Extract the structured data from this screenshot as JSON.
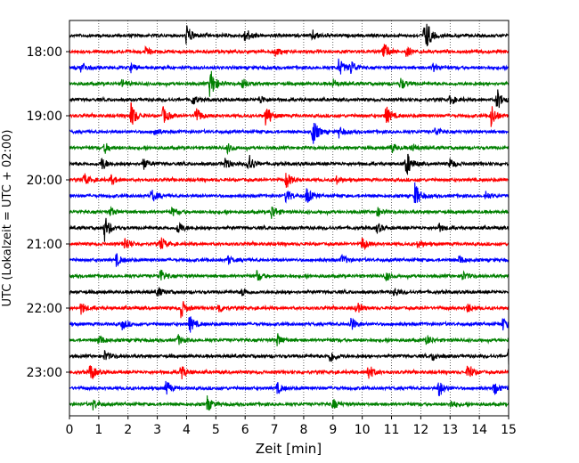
{
  "chart_data": {
    "type": "line",
    "title": "",
    "xlabel": "Zeit  [min]",
    "ylabel": "UTC (Lokalzeit = UTC + 02:00)",
    "xlim": [
      0,
      15
    ],
    "xticks": [
      0,
      1,
      2,
      3,
      4,
      5,
      6,
      7,
      8,
      9,
      10,
      11,
      12,
      13,
      14,
      15
    ],
    "grid": "vertical dotted",
    "line_start": "17:45",
    "line_interval_minutes": 15,
    "line_colors": [
      "#000000",
      "#ff0000",
      "#0000ff",
      "#008000"
    ],
    "series": [
      {
        "start": "17:45",
        "events": [
          [
            4.0,
            1.3
          ],
          [
            6.0,
            0.9
          ],
          [
            8.3,
            0.6
          ],
          [
            12.1,
            1.0
          ],
          [
            12.2,
            1.2
          ]
        ]
      },
      {
        "start": "18:00",
        "events": [
          [
            2.6,
            0.5
          ],
          [
            7.0,
            0.6
          ],
          [
            10.7,
            1.4
          ],
          [
            11.5,
            0.6
          ]
        ]
      },
      {
        "start": "18:15",
        "events": [
          [
            0.4,
            0.7
          ],
          [
            2.1,
            0.5
          ],
          [
            9.2,
            1.1
          ],
          [
            9.6,
            0.9
          ],
          [
            12.4,
            0.5
          ]
        ]
      },
      {
        "start": "18:30",
        "events": [
          [
            1.8,
            0.5
          ],
          [
            4.8,
            1.9
          ],
          [
            5.9,
            0.6
          ],
          [
            9.0,
            0.5
          ],
          [
            11.3,
            0.7
          ]
        ]
      },
      {
        "start": "18:45",
        "events": [
          [
            4.2,
            0.6
          ],
          [
            6.5,
            0.5
          ],
          [
            13.0,
            0.5
          ],
          [
            14.6,
            1.3
          ]
        ]
      },
      {
        "start": "19:00",
        "events": [
          [
            2.1,
            1.5
          ],
          [
            3.2,
            1.0
          ],
          [
            4.3,
            1.1
          ],
          [
            6.7,
            1.3
          ],
          [
            10.8,
            1.2
          ],
          [
            14.4,
            1.4
          ]
        ]
      },
      {
        "start": "19:15",
        "events": [
          [
            2.9,
            0.5
          ],
          [
            8.3,
            1.7
          ],
          [
            9.2,
            0.6
          ],
          [
            12.5,
            0.5
          ]
        ]
      },
      {
        "start": "19:30",
        "events": [
          [
            1.2,
            0.6
          ],
          [
            5.4,
            0.5
          ],
          [
            11.0,
            0.6
          ],
          [
            11.7,
            0.5
          ]
        ]
      },
      {
        "start": "19:45",
        "events": [
          [
            1.1,
            0.8
          ],
          [
            2.5,
            0.7
          ],
          [
            5.3,
            0.8
          ],
          [
            6.1,
            1.3
          ],
          [
            11.5,
            1.6
          ],
          [
            13.0,
            0.6
          ]
        ]
      },
      {
        "start": "20:00",
        "events": [
          [
            0.5,
            0.7
          ],
          [
            1.4,
            0.6
          ],
          [
            7.4,
            1.0
          ],
          [
            9.1,
            0.5
          ]
        ]
      },
      {
        "start": "20:15",
        "events": [
          [
            2.8,
            0.8
          ],
          [
            7.4,
            0.9
          ],
          [
            8.1,
            1.0
          ],
          [
            11.8,
            1.5
          ],
          [
            14.2,
            0.5
          ]
        ]
      },
      {
        "start": "20:30",
        "events": [
          [
            1.4,
            0.5
          ],
          [
            3.5,
            0.5
          ],
          [
            6.9,
            0.9
          ],
          [
            10.5,
            0.5
          ]
        ]
      },
      {
        "start": "20:45",
        "events": [
          [
            1.2,
            1.5
          ],
          [
            3.7,
            0.8
          ],
          [
            10.5,
            0.6
          ],
          [
            12.6,
            0.5
          ]
        ]
      },
      {
        "start": "21:00",
        "events": [
          [
            1.9,
            0.9
          ],
          [
            3.1,
            0.8
          ],
          [
            10.0,
            0.8
          ],
          [
            11.9,
            0.5
          ]
        ]
      },
      {
        "start": "21:15",
        "events": [
          [
            1.6,
            0.7
          ],
          [
            5.4,
            0.5
          ],
          [
            9.3,
            0.6
          ],
          [
            13.3,
            0.5
          ]
        ]
      },
      {
        "start": "21:30",
        "events": [
          [
            3.1,
            0.8
          ],
          [
            6.4,
            0.6
          ],
          [
            10.8,
            0.5
          ],
          [
            13.4,
            0.6
          ]
        ]
      },
      {
        "start": "21:45",
        "events": [
          [
            3.0,
            0.6
          ],
          [
            5.9,
            0.5
          ],
          [
            11.1,
            0.5
          ]
        ]
      },
      {
        "start": "22:00",
        "events": [
          [
            0.4,
            0.7
          ],
          [
            3.8,
            1.2
          ],
          [
            5.1,
            0.6
          ],
          [
            9.8,
            0.7
          ],
          [
            13.6,
            0.5
          ]
        ]
      },
      {
        "start": "22:15",
        "events": [
          [
            1.8,
            0.6
          ],
          [
            4.1,
            1.0
          ],
          [
            9.6,
            0.9
          ],
          [
            14.8,
            0.7
          ]
        ]
      },
      {
        "start": "22:30",
        "events": [
          [
            1.0,
            0.6
          ],
          [
            3.7,
            0.6
          ],
          [
            7.1,
            0.7
          ],
          [
            12.2,
            0.6
          ]
        ]
      },
      {
        "start": "22:45",
        "events": [
          [
            1.2,
            0.6
          ],
          [
            8.9,
            0.8
          ],
          [
            12.4,
            0.5
          ],
          [
            15.0,
            0.9
          ]
        ]
      },
      {
        "start": "23:00",
        "events": [
          [
            0.7,
            1.1
          ],
          [
            3.8,
            0.9
          ],
          [
            10.2,
            1.0
          ],
          [
            13.6,
            1.0
          ]
        ]
      },
      {
        "start": "23:15",
        "events": [
          [
            3.3,
            0.9
          ],
          [
            7.1,
            0.6
          ],
          [
            12.6,
            1.2
          ],
          [
            14.5,
            0.8
          ]
        ]
      },
      {
        "start": "23:30",
        "events": [
          [
            0.8,
            0.6
          ],
          [
            4.7,
            0.9
          ],
          [
            9.0,
            0.6
          ],
          [
            13.0,
            0.5
          ]
        ]
      }
    ],
    "yticks": [
      {
        "label": "18:00",
        "line_index": 1
      },
      {
        "label": "19:00",
        "line_index": 5
      },
      {
        "label": "20:00",
        "line_index": 9
      },
      {
        "label": "21:00",
        "line_index": 13
      },
      {
        "label": "22:00",
        "line_index": 17
      },
      {
        "label": "23:00",
        "line_index": 21
      }
    ]
  }
}
